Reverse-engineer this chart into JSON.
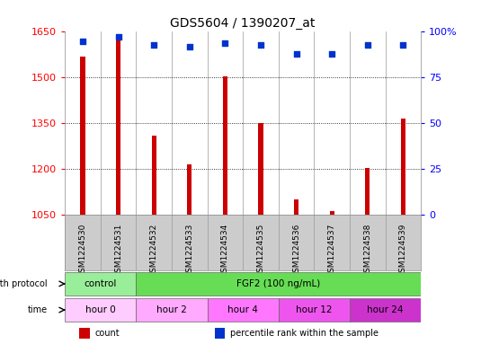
{
  "title": "GDS5604 / 1390207_at",
  "samples": [
    "GSM1224530",
    "GSM1224531",
    "GSM1224532",
    "GSM1224533",
    "GSM1224534",
    "GSM1224535",
    "GSM1224536",
    "GSM1224537",
    "GSM1224538",
    "GSM1224539"
  ],
  "counts": [
    1570,
    1630,
    1310,
    1215,
    1505,
    1350,
    1100,
    1063,
    1205,
    1365
  ],
  "percentiles": [
    95,
    97,
    93,
    92,
    94,
    93,
    88,
    88,
    93,
    93
  ],
  "ylim_left": [
    1050,
    1650
  ],
  "ylim_right": [
    0,
    100
  ],
  "yticks_left": [
    1050,
    1200,
    1350,
    1500,
    1650
  ],
  "yticks_right": [
    0,
    25,
    50,
    75,
    100
  ],
  "bar_color": "#cc0000",
  "dot_color": "#0033cc",
  "bg_color": "#ffffff",
  "sample_area_color": "#cccccc",
  "growth_protocol_row": {
    "label": "growth protocol",
    "groups": [
      {
        "text": "control",
        "span": [
          0,
          2
        ],
        "color": "#99ee99"
      },
      {
        "text": "FGF2 (100 ng/mL)",
        "span": [
          2,
          10
        ],
        "color": "#66dd55"
      }
    ]
  },
  "time_row": {
    "label": "time",
    "groups": [
      {
        "text": "hour 0",
        "span": [
          0,
          2
        ],
        "color": "#ffccff"
      },
      {
        "text": "hour 2",
        "span": [
          2,
          4
        ],
        "color": "#ffaaff"
      },
      {
        "text": "hour 4",
        "span": [
          4,
          6
        ],
        "color": "#ff77ff"
      },
      {
        "text": "hour 12",
        "span": [
          6,
          8
        ],
        "color": "#ee55ee"
      },
      {
        "text": "hour 24",
        "span": [
          8,
          10
        ],
        "color": "#cc33cc"
      }
    ]
  },
  "legend_items": [
    {
      "label": "count",
      "color": "#cc0000"
    },
    {
      "label": "percentile rank within the sample",
      "color": "#0033cc"
    }
  ]
}
